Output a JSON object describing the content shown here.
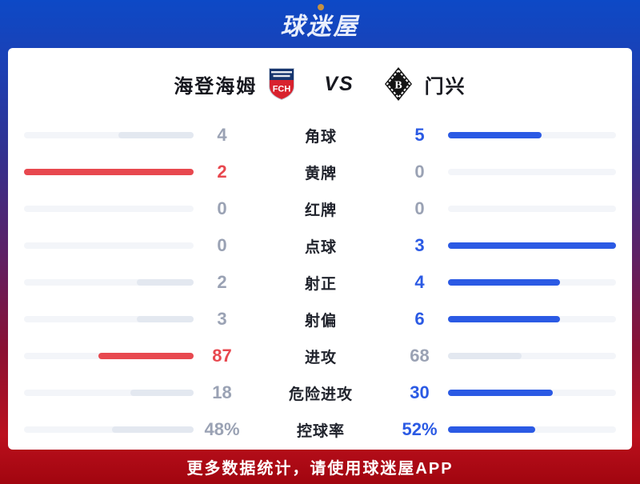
{
  "brand": {
    "logo_text": "球迷屋"
  },
  "match": {
    "home": {
      "name": "海登海姆",
      "badge_text": "FCH"
    },
    "vs_label": "VS",
    "away": {
      "name": "门兴",
      "badge_letter": "B"
    }
  },
  "stats": {
    "rows": [
      {
        "label": "角球",
        "home": "4",
        "away": "5",
        "home_val": 4,
        "away_val": 5,
        "winner": "away"
      },
      {
        "label": "黄牌",
        "home": "2",
        "away": "0",
        "home_val": 2,
        "away_val": 0,
        "winner": "home"
      },
      {
        "label": "红牌",
        "home": "0",
        "away": "0",
        "home_val": 0,
        "away_val": 0,
        "winner": "none"
      },
      {
        "label": "点球",
        "home": "0",
        "away": "3",
        "home_val": 0,
        "away_val": 3,
        "winner": "away"
      },
      {
        "label": "射正",
        "home": "2",
        "away": "4",
        "home_val": 2,
        "away_val": 4,
        "winner": "away"
      },
      {
        "label": "射偏",
        "home": "3",
        "away": "6",
        "home_val": 3,
        "away_val": 6,
        "winner": "away"
      },
      {
        "label": "进攻",
        "home": "87",
        "away": "68",
        "home_val": 87,
        "away_val": 68,
        "winner": "home"
      },
      {
        "label": "危险进攻",
        "home": "18",
        "away": "30",
        "home_val": 18,
        "away_val": 30,
        "winner": "away"
      },
      {
        "label": "控球率",
        "home": "48%",
        "away": "52%",
        "home_val": 48,
        "away_val": 52,
        "winner": "away"
      }
    ]
  },
  "footer": {
    "text": "更多数据统计，请使用球迷屋APP"
  },
  "colors": {
    "home_win": "#e8484f",
    "away_win": "#2b5ae4",
    "neutral_fill": "#e3e8f0",
    "gray_text": "#9aa2b4",
    "label_text": "#20232c"
  }
}
